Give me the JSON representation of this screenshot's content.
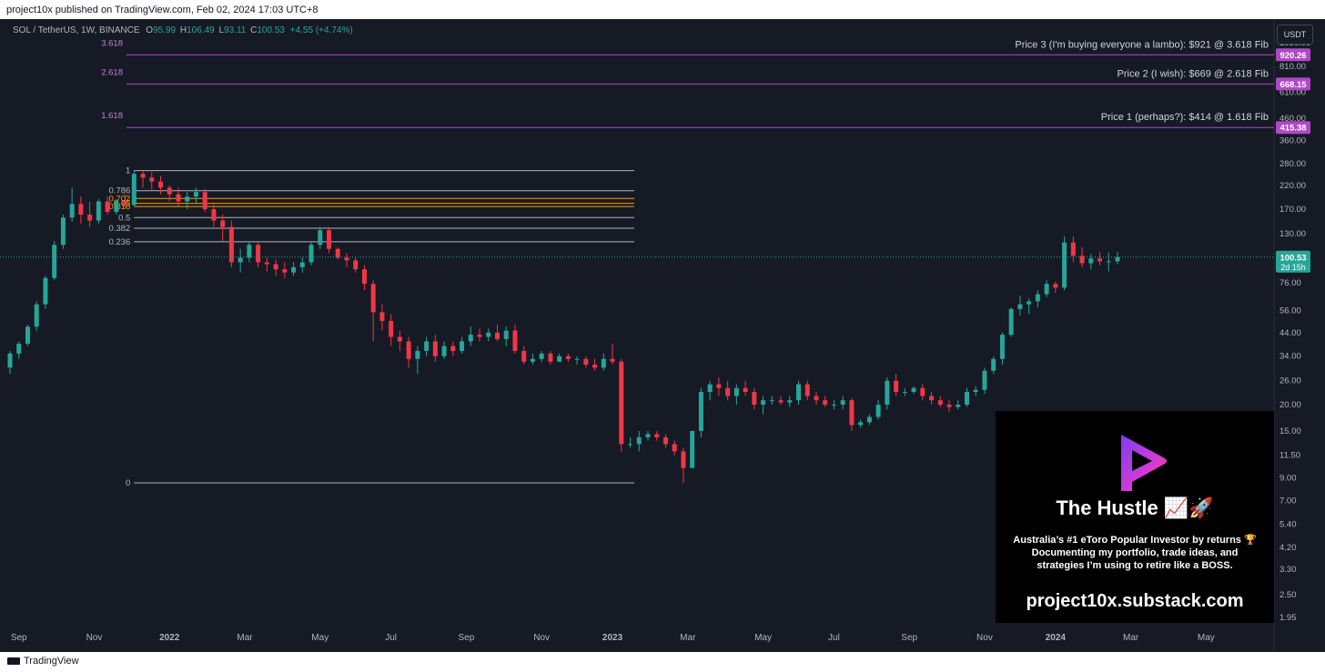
{
  "header": {
    "published": "project10x published on TradingView.com, Feb 02, 2024 17:03 UTC+8"
  },
  "footer": {
    "brand": "TradingView"
  },
  "legend": {
    "symbol": "SOL / TetherUS, 1W, BINANCE",
    "o_key": "O",
    "o_val": "95.99",
    "h_key": "H",
    "h_val": "106.49",
    "l_key": "L",
    "l_val": "93.11",
    "c_key": "C",
    "c_val": "100.53",
    "change": "+4.55 (+4.74%)"
  },
  "currency": "USDT",
  "promo": {
    "title": "The Hustle 📈🚀",
    "line1": "Australia’s #1 eToro Popular Investor by returns 🏆",
    "line2": "Documenting my portfolio, trade ideas, and",
    "line3": "strategies I’m using to retire like a BOSS.",
    "url": "project10x.substack.com"
  },
  "colors": {
    "background": "#161a25",
    "up": "#26a69a",
    "down": "#f23645",
    "fib_ext": "#b048c8",
    "fib_main": "#ff9800",
    "text": "#b2b5be"
  },
  "chart_data": {
    "type": "candlestick",
    "scale": "log",
    "x_axis_ticks": [
      "Sep",
      "Nov",
      "2022",
      "Mar",
      "May",
      "Jul",
      "Sep",
      "Nov",
      "2023",
      "Mar",
      "May",
      "Jul",
      "Sep",
      "Nov",
      "2024",
      "Mar",
      "May"
    ],
    "y_axis_ticks": [
      "1050.00",
      "810.00",
      "610.00",
      "460.00",
      "360.00",
      "280.00",
      "220.00",
      "170.00",
      "130.00",
      "76.00",
      "56.00",
      "44.00",
      "34.00",
      "26.00",
      "20.00",
      "15.00",
      "11.50",
      "9.00",
      "7.00",
      "5.40",
      "4.20",
      "3.30",
      "2.50",
      "1.95"
    ],
    "last_price": {
      "value": "100.53",
      "countdown": "2d 15h"
    },
    "fib_levels": [
      {
        "label": "1",
        "value": 259
      },
      {
        "label": "0.786",
        "value": 208
      },
      {
        "label": "0.702",
        "value": 191
      },
      {
        "label": "0.65",
        "value": 181
      },
      {
        "label": "0.618",
        "value": 175
      },
      {
        "label": "0.5",
        "value": 155
      },
      {
        "label": "0.382",
        "value": 138
      },
      {
        "label": "0.236",
        "value": 119
      },
      {
        "label": "0",
        "value": 8.5
      }
    ],
    "fib_extensions": [
      {
        "label": "3.618",
        "price_tag": "920.26",
        "note": "Price 3 (I'm buying everyone a lambo): $921 @ 3.618 Fib"
      },
      {
        "label": "2.618",
        "price_tag": "668.15",
        "note": "Price 2 (I wish): $669 @ 2.618 Fib"
      },
      {
        "label": "1.618",
        "price_tag": "415.38",
        "note": "Price 1 (perhaps?): $414 @ 1.618 Fib"
      }
    ],
    "candles": [
      [
        2021.64,
        30,
        36,
        28,
        35
      ],
      [
        2021.66,
        35,
        40,
        33,
        39
      ],
      [
        2021.68,
        39,
        48,
        38,
        47
      ],
      [
        2021.7,
        47,
        62,
        45,
        60
      ],
      [
        2021.72,
        60,
        82,
        57,
        80
      ],
      [
        2021.74,
        80,
        120,
        78,
        115
      ],
      [
        2021.76,
        115,
        160,
        110,
        155
      ],
      [
        2021.78,
        155,
        215,
        148,
        180
      ],
      [
        2021.8,
        180,
        195,
        145,
        160
      ],
      [
        2021.82,
        160,
        185,
        140,
        150
      ],
      [
        2021.84,
        150,
        190,
        145,
        185
      ],
      [
        2021.86,
        185,
        195,
        160,
        165
      ],
      [
        2021.88,
        165,
        190,
        160,
        185
      ],
      [
        2021.9,
        185,
        200,
        172,
        178
      ],
      [
        2021.92,
        178,
        260,
        175,
        250
      ],
      [
        2021.94,
        250,
        259,
        215,
        240
      ],
      [
        2021.96,
        240,
        255,
        210,
        230
      ],
      [
        2021.98,
        230,
        245,
        200,
        215
      ],
      [
        2022.0,
        215,
        220,
        185,
        200
      ],
      [
        2022.02,
        200,
        215,
        175,
        185
      ],
      [
        2022.04,
        185,
        205,
        170,
        195
      ],
      [
        2022.06,
        195,
        215,
        180,
        205
      ],
      [
        2022.08,
        205,
        212,
        165,
        170
      ],
      [
        2022.1,
        170,
        180,
        140,
        150
      ],
      [
        2022.12,
        150,
        160,
        120,
        140
      ],
      [
        2022.14,
        140,
        150,
        90,
        95
      ],
      [
        2022.16,
        95,
        110,
        85,
        100
      ],
      [
        2022.18,
        100,
        120,
        95,
        115
      ],
      [
        2022.2,
        115,
        118,
        90,
        95
      ],
      [
        2022.22,
        95,
        100,
        86,
        93
      ],
      [
        2022.24,
        93,
        98,
        82,
        88
      ],
      [
        2022.26,
        88,
        95,
        80,
        85
      ],
      [
        2022.28,
        85,
        95,
        82,
        90
      ],
      [
        2022.3,
        90,
        100,
        85,
        95
      ],
      [
        2022.32,
        95,
        120,
        92,
        115
      ],
      [
        2022.34,
        115,
        140,
        110,
        135
      ],
      [
        2022.36,
        135,
        140,
        105,
        110
      ],
      [
        2022.38,
        110,
        112,
        98,
        100
      ],
      [
        2022.4,
        100,
        105,
        90,
        97
      ],
      [
        2022.42,
        97,
        100,
        85,
        88
      ],
      [
        2022.44,
        88,
        92,
        70,
        75
      ],
      [
        2022.46,
        75,
        78,
        40,
        55
      ],
      [
        2022.48,
        55,
        60,
        45,
        50
      ],
      [
        2022.5,
        50,
        54,
        38,
        42
      ],
      [
        2022.52,
        42,
        45,
        36,
        40
      ],
      [
        2022.54,
        40,
        42,
        30,
        33
      ],
      [
        2022.56,
        33,
        38,
        28,
        36
      ],
      [
        2022.58,
        36,
        42,
        34,
        40
      ],
      [
        2022.6,
        40,
        43,
        32,
        34
      ],
      [
        2022.62,
        34,
        40,
        33,
        38
      ],
      [
        2022.64,
        38,
        40,
        34,
        36
      ],
      [
        2022.66,
        36,
        42,
        35,
        40
      ],
      [
        2022.68,
        40,
        47,
        38,
        43
      ],
      [
        2022.7,
        43,
        46,
        40,
        42
      ],
      [
        2022.72,
        42,
        46,
        40,
        44
      ],
      [
        2022.74,
        44,
        48,
        40,
        41
      ],
      [
        2022.76,
        41,
        47,
        38,
        45
      ],
      [
        2022.78,
        45,
        48,
        35,
        36
      ],
      [
        2022.8,
        36,
        38,
        31,
        32
      ],
      [
        2022.82,
        32,
        35,
        31,
        33
      ],
      [
        2022.84,
        33,
        36,
        32,
        35
      ],
      [
        2022.86,
        35,
        36,
        31,
        32
      ],
      [
        2022.88,
        32,
        35,
        32,
        34
      ],
      [
        2022.9,
        34,
        35,
        32,
        33
      ],
      [
        2022.92,
        33,
        34,
        31,
        33
      ],
      [
        2022.94,
        33,
        34,
        30,
        31
      ],
      [
        2022.96,
        31,
        33,
        29,
        30
      ],
      [
        2022.98,
        30,
        35,
        29,
        33
      ],
      [
        2023.0,
        33,
        39,
        31,
        32
      ],
      [
        2023.02,
        32,
        33,
        12,
        13
      ],
      [
        2023.04,
        13,
        14,
        12.5,
        13
      ],
      [
        2023.06,
        13,
        15,
        12,
        14
      ],
      [
        2023.08,
        14,
        15,
        13.5,
        14.5
      ],
      [
        2023.1,
        14.5,
        15,
        13.5,
        14
      ],
      [
        2023.12,
        14,
        14.5,
        12.5,
        13
      ],
      [
        2023.14,
        13,
        13.5,
        11.5,
        12
      ],
      [
        2023.16,
        12,
        12.5,
        8.5,
        10
      ],
      [
        2023.18,
        10,
        14,
        10,
        15
      ],
      [
        2023.2,
        15,
        24,
        14,
        23
      ],
      [
        2023.22,
        23,
        26,
        21,
        25
      ],
      [
        2023.24,
        25,
        27,
        22,
        24
      ],
      [
        2023.26,
        24,
        26,
        21,
        22
      ],
      [
        2023.28,
        22,
        25,
        20,
        24
      ],
      [
        2023.3,
        24,
        26,
        22,
        23
      ],
      [
        2023.32,
        23,
        24,
        19,
        20
      ],
      [
        2023.34,
        20,
        22,
        18,
        21
      ],
      [
        2023.36,
        21,
        22,
        20,
        21
      ],
      [
        2023.38,
        21,
        22,
        20,
        20.5
      ],
      [
        2023.4,
        20.5,
        22,
        19.5,
        21
      ],
      [
        2023.42,
        21,
        26,
        20,
        25
      ],
      [
        2023.44,
        25,
        26,
        21,
        22
      ],
      [
        2023.46,
        22,
        23,
        20,
        21
      ],
      [
        2023.48,
        21,
        22,
        19.5,
        20
      ],
      [
        2023.5,
        20,
        21,
        19,
        20
      ],
      [
        2023.52,
        20,
        22,
        19,
        21
      ],
      [
        2023.54,
        21,
        21.5,
        15,
        16
      ],
      [
        2023.56,
        16,
        17,
        15.5,
        16.5
      ],
      [
        2023.58,
        16.5,
        18,
        16,
        17.5
      ],
      [
        2023.6,
        17.5,
        21,
        17,
        20
      ],
      [
        2023.62,
        20,
        27,
        19,
        26
      ],
      [
        2023.64,
        26,
        28,
        22,
        23
      ],
      [
        2023.66,
        23,
        24,
        22,
        23
      ],
      [
        2023.68,
        23,
        24.5,
        22.5,
        24
      ],
      [
        2023.7,
        24,
        25,
        21,
        22
      ],
      [
        2023.72,
        22,
        23,
        20,
        21
      ],
      [
        2023.74,
        21,
        22,
        19.5,
        20
      ],
      [
        2023.76,
        20,
        21,
        18.5,
        19.5
      ],
      [
        2023.78,
        19.5,
        21,
        19,
        20
      ],
      [
        2023.8,
        20,
        24,
        19.5,
        23
      ],
      [
        2023.82,
        23,
        24.5,
        22,
        23.5
      ],
      [
        2023.84,
        23.5,
        30,
        22.5,
        29
      ],
      [
        2023.86,
        29,
        34,
        28,
        33
      ],
      [
        2023.88,
        33,
        44,
        31,
        43
      ],
      [
        2023.9,
        43,
        58,
        42,
        57
      ],
      [
        2023.92,
        57,
        66,
        53,
        60
      ],
      [
        2023.94,
        60,
        64,
        54,
        62
      ],
      [
        2023.96,
        62,
        70,
        58,
        67
      ],
      [
        2023.98,
        67,
        78,
        65,
        75
      ],
      [
        2024.0,
        75,
        77,
        68,
        72
      ],
      [
        2024.02,
        72,
        126,
        70,
        118
      ],
      [
        2024.04,
        118,
        126,
        95,
        102
      ],
      [
        2024.06,
        102,
        112,
        90,
        94
      ],
      [
        2024.08,
        94,
        104,
        88,
        99
      ],
      [
        2024.1,
        99,
        106,
        92,
        96
      ],
      [
        2024.12,
        96,
        106,
        86,
        96
      ],
      [
        2024.14,
        95.99,
        106.49,
        93.11,
        100.53
      ]
    ]
  }
}
